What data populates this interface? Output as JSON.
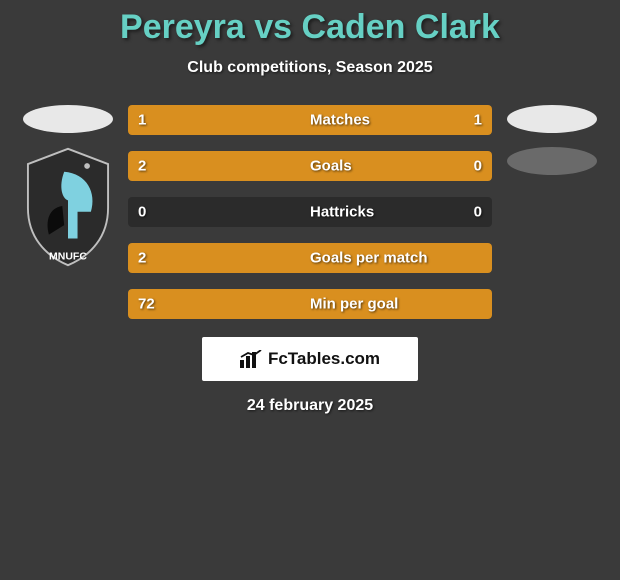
{
  "title_text": "Pereyra vs Caden Clark",
  "title_color": "#66d0c4",
  "subtitle": "Club competitions, Season 2025",
  "background_color": "#3a3a3a",
  "left_player": {
    "top_oval_color": "#e8e8e8",
    "badge_colors": {
      "shield": "#2b2b2b",
      "accent": "#7fd1e0",
      "text": "#ffffff"
    },
    "badge_text": "MNUFC"
  },
  "right_player": {
    "top_oval_color": "#e8e8e8",
    "second_oval_color": "#6a6a6a"
  },
  "bars": {
    "left_color": "#d98f1f",
    "right_color": "#d98f1f",
    "track_color": "#2b2b2b",
    "rows": [
      {
        "label": "Matches",
        "left_val": "1",
        "right_val": "1",
        "left_pct": 50,
        "right_pct": 50
      },
      {
        "label": "Goals",
        "left_val": "2",
        "right_val": "0",
        "left_pct": 76,
        "right_pct": 24
      },
      {
        "label": "Hattricks",
        "left_val": "0",
        "right_val": "0",
        "left_pct": 0,
        "right_pct": 0
      },
      {
        "label": "Goals per match",
        "left_val": "2",
        "right_val": "",
        "left_pct": 100,
        "right_pct": 0
      },
      {
        "label": "Min per goal",
        "left_val": "72",
        "right_val": "",
        "left_pct": 100,
        "right_pct": 0
      }
    ]
  },
  "footer_logo_text": "FcTables.com",
  "date_text": "24 february 2025"
}
